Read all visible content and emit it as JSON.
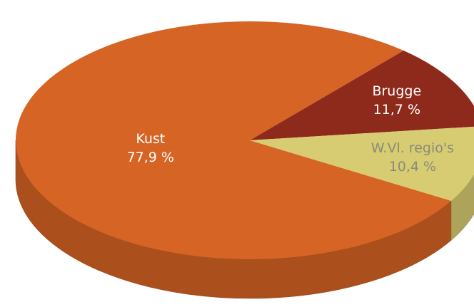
{
  "chart_data": {
    "type": "pie",
    "categories": [
      "Kust",
      "Brugge",
      "W.Vl. regio's"
    ],
    "values": [
      77.9,
      11.7,
      10.4
    ],
    "value_labels": [
      "77,9 %",
      "11,7 %",
      "10,4 %"
    ],
    "colors": [
      "#d66424",
      "#8e2a1c",
      "#d8cc72"
    ]
  }
}
